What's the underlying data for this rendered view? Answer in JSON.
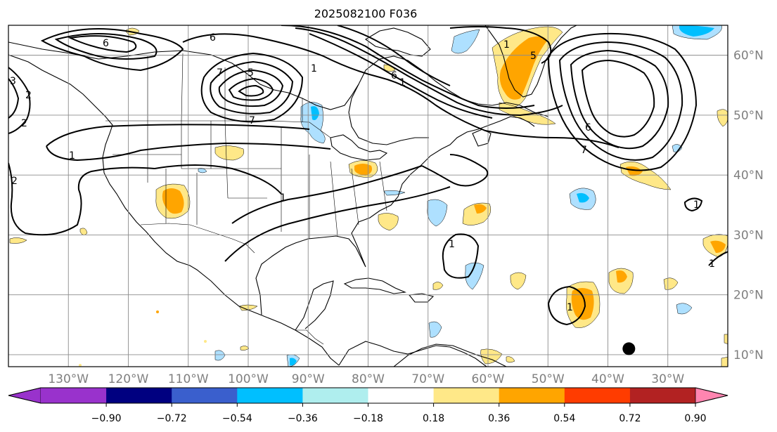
{
  "title": "2025082100 F036",
  "map": {
    "lon_min": -140,
    "lon_max": -20,
    "lat_min": 8,
    "lat_max": 65,
    "grid_lons": [
      -130,
      -120,
      -110,
      -100,
      -90,
      -80,
      -70,
      -60,
      -50,
      -40,
      -30
    ],
    "grid_lats": [
      10,
      20,
      30,
      40,
      50,
      60
    ],
    "lon_labels": [
      "130°W",
      "120°W",
      "110°W",
      "100°W",
      "90°W",
      "80°W",
      "70°W",
      "60°W",
      "50°W",
      "40°W",
      "30°W"
    ],
    "lat_labels": [
      "10°N",
      "20°N",
      "30°N",
      "40°N",
      "50°N",
      "60°N"
    ],
    "marker": {
      "lon": -36.5,
      "lat": 11
    },
    "contour_labels": [
      "6",
      "6",
      "5",
      "7",
      "1",
      "7",
      "1",
      "6",
      "5",
      "1",
      "2",
      "1",
      "1",
      "2",
      "1",
      "1",
      "1",
      "1",
      "6",
      "7",
      "3",
      "2"
    ]
  },
  "colorbar": {
    "ticks": [
      "−0.90",
      "−0.72",
      "−0.54",
      "−0.36",
      "−0.18",
      "0.18",
      "0.36",
      "0.54",
      "0.72",
      "0.90"
    ],
    "bins": [
      "#9932cc",
      "#000080",
      "#3a5fcd",
      "#00bfff",
      "#afeeee",
      "#ffffff",
      "#ffe888",
      "#ffa500",
      "#ff3c00",
      "#b22222"
    ],
    "under_color": "#9932cc",
    "over_color": "#ff85b0"
  },
  "shading": {
    "colors": {
      "light_blue": "#aee0ff",
      "mid_blue": "#00bfff",
      "yellow": "#ffe888",
      "orange": "#ffa500",
      "red": "#ff3c00"
    }
  }
}
